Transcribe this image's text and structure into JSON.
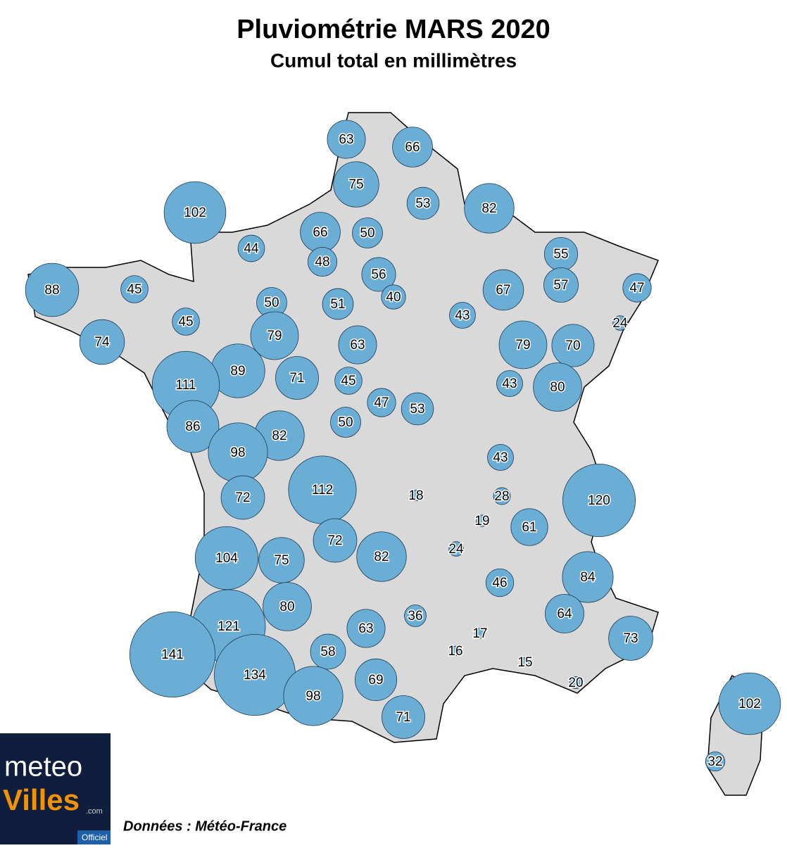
{
  "header": {
    "title": "Pluviométrie MARS 2020",
    "subtitle": "Cumul total en millimètres"
  },
  "bubbles": {
    "color": "#6aaed6",
    "values": [
      63,
      66,
      75,
      102,
      53,
      82,
      66,
      50,
      44,
      48,
      55,
      56,
      88,
      45,
      40,
      67,
      57,
      47,
      50,
      51,
      43,
      45,
      24,
      79,
      74,
      63,
      79,
      70,
      89,
      111,
      71,
      45,
      43,
      80,
      47,
      53,
      50,
      86,
      82,
      98,
      43,
      112,
      72,
      18,
      28,
      120,
      19,
      61,
      72,
      104,
      75,
      82,
      24,
      84,
      46,
      80,
      64,
      121,
      36,
      63,
      17,
      73,
      141,
      58,
      16,
      15,
      134,
      69,
      98,
      20,
      102,
      71,
      32
    ]
  },
  "source": "Données : Météo-France",
  "logo": {
    "line1": "meteo",
    "line2": "Villes",
    "suffix": ".com",
    "badge": "Officiel"
  }
}
